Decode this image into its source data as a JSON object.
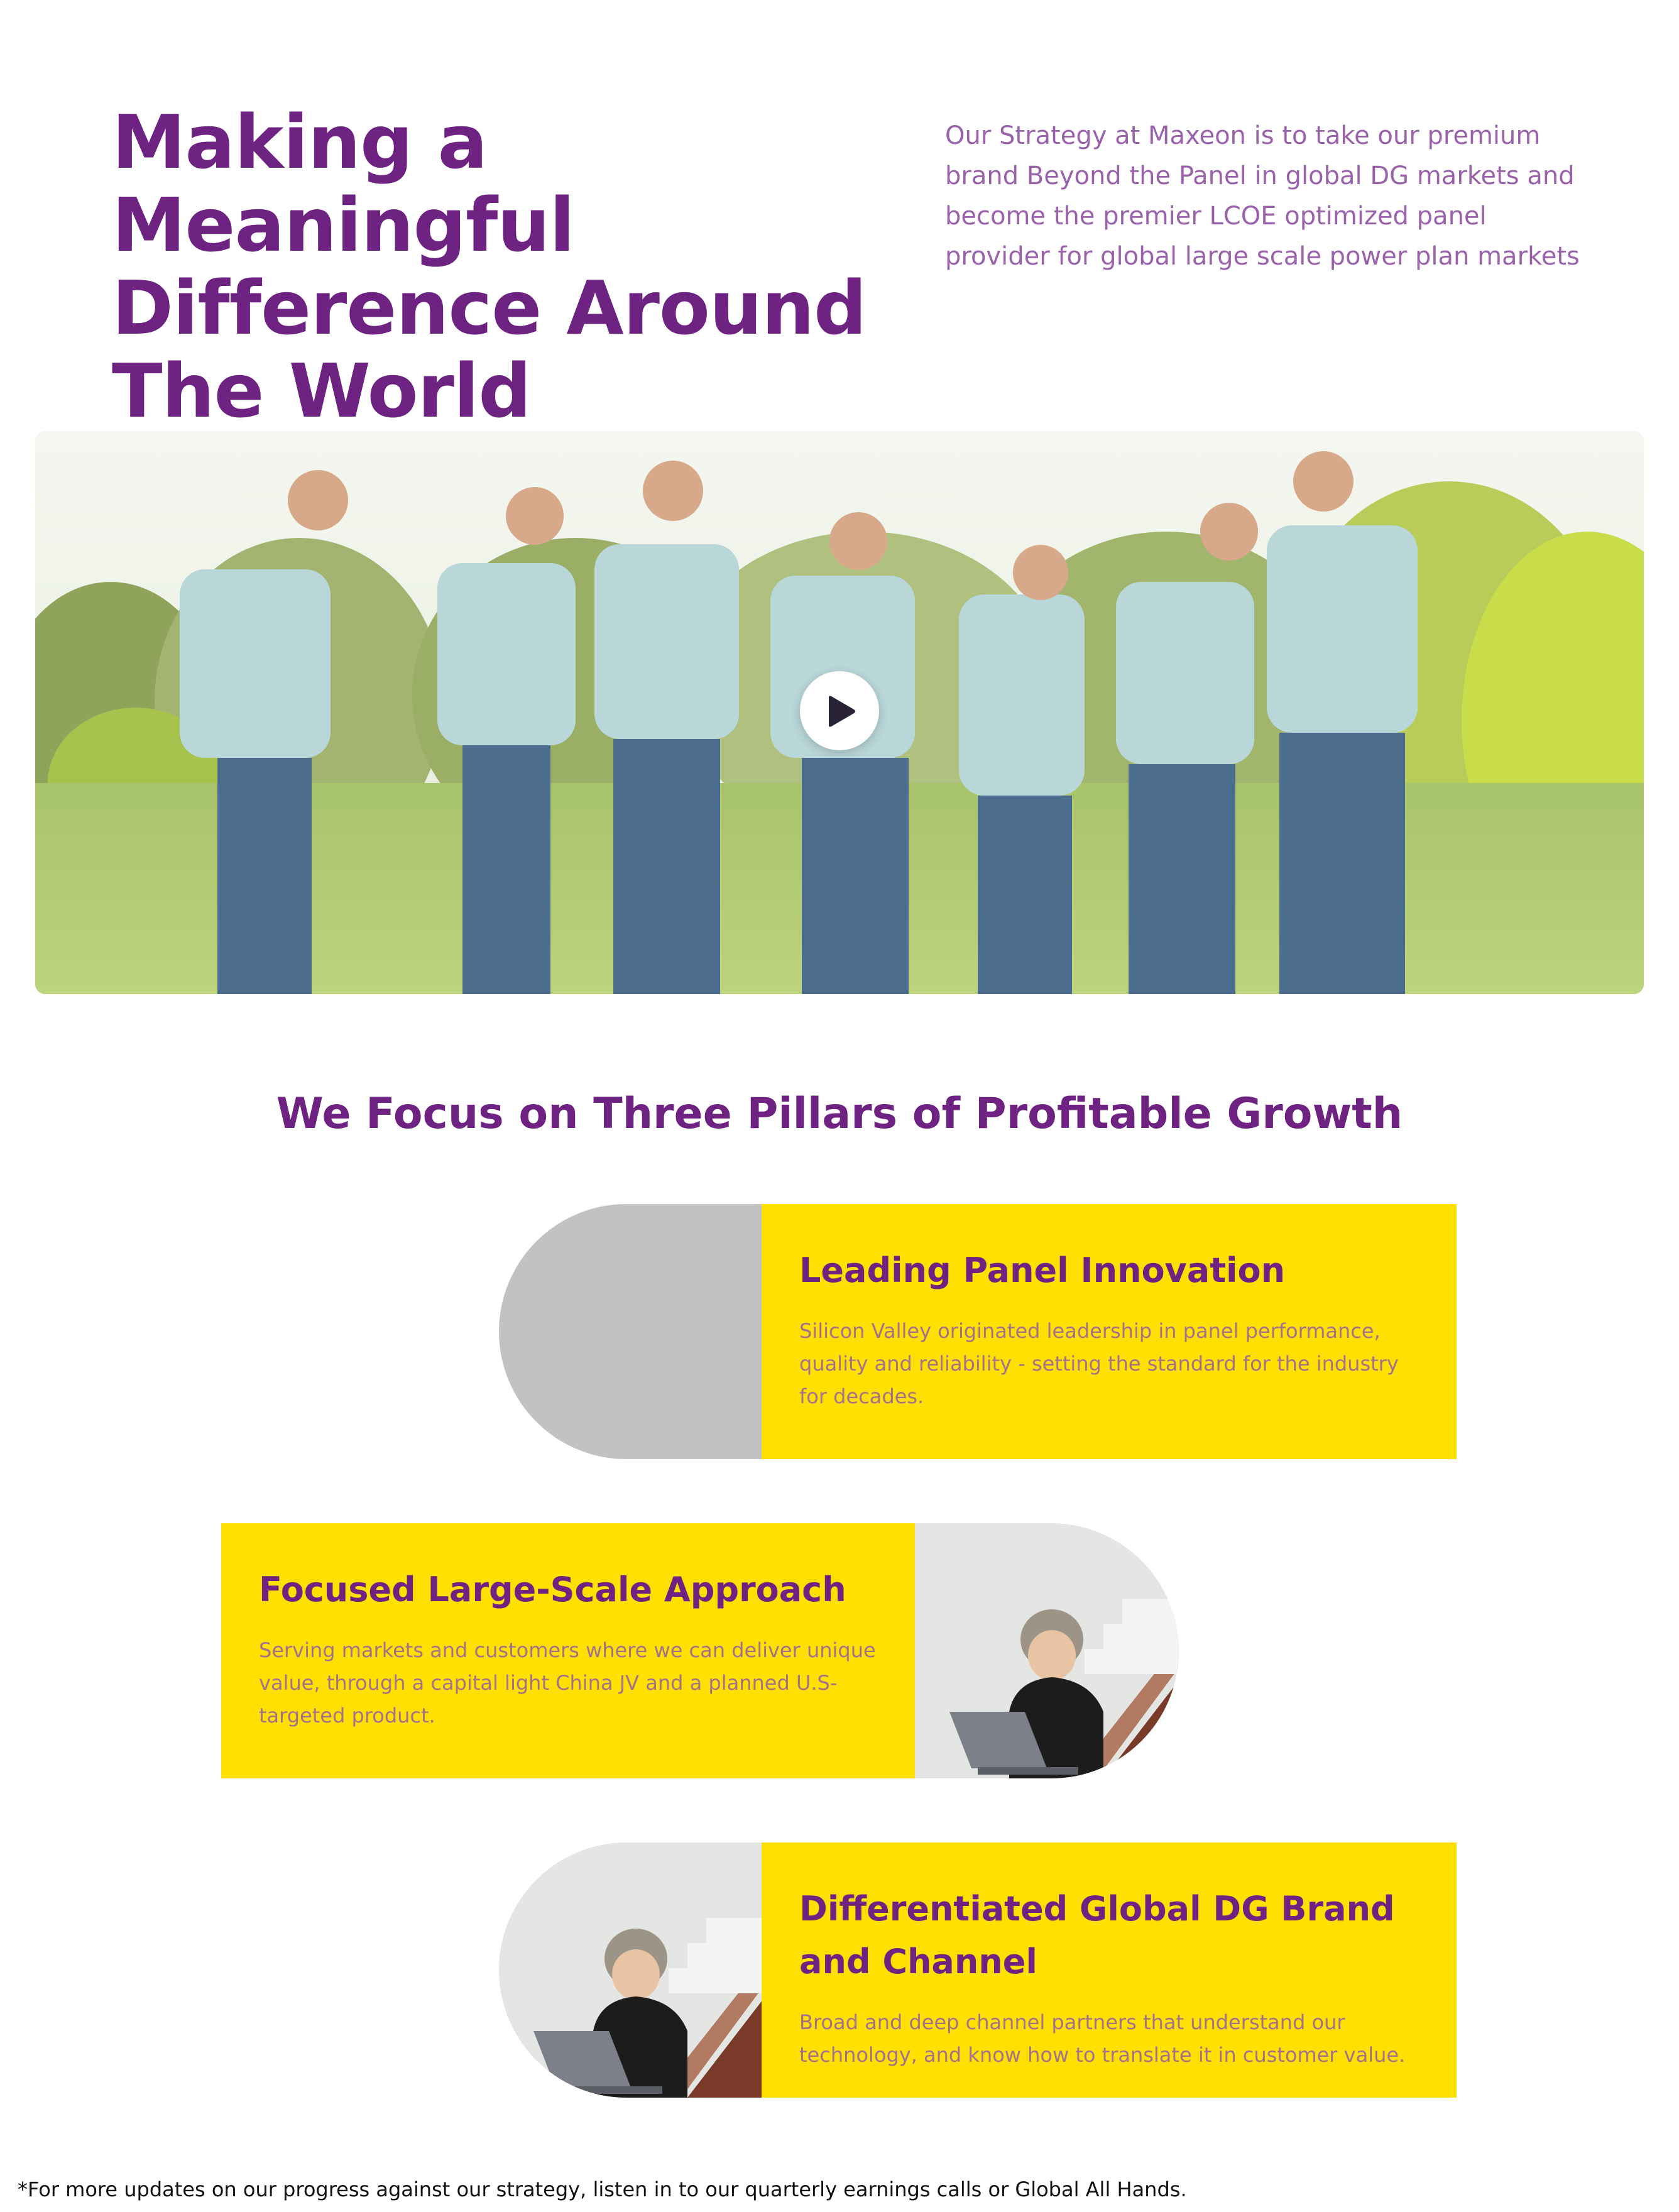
{
  "hero": {
    "title": "Making a Meaningful Difference Around The World",
    "lead": "Our Strategy at Maxeon is to take our premium brand Beyond the Panel in global DG markets and become the premier LCOE optimized panel provider for global large scale power plan markets"
  },
  "video": {
    "thumbnail": "group-of-volunteers-cheering-in-park",
    "play_icon": "play-icon"
  },
  "pillars": {
    "title": "We Focus on Three Pillars of Profitable Growth",
    "items": [
      {
        "title": "Leading Panel Innovation",
        "text": "Silicon Valley originated leadership in panel performance, quality and reliability - setting the standard for the industry for decades.",
        "image": "gray-placeholder"
      },
      {
        "title": "Focused Large-Scale Approach",
        "text": "Serving markets and customers where we can deliver unique value, through a capital light China JV and a planned U.S-targeted product.",
        "image": "person-with-laptop-on-stairs"
      },
      {
        "title": "Differentiated Global DG Brand and Channel",
        "text": "Broad and deep channel partners that understand our technology, and know how to translate it in customer value.",
        "image": "person-with-laptop-on-stairs"
      }
    ]
  },
  "footnote": "*For more updates on our progress against our strategy, listen in to our quarterly earnings calls or Global All Hands.",
  "colors": {
    "brand_purple": "#6e2383",
    "lead_purple": "#9a62ab",
    "card_yellow": "#ffe000",
    "card_text": "#a3728a",
    "placeholder_gray": "#c2c2c2"
  }
}
